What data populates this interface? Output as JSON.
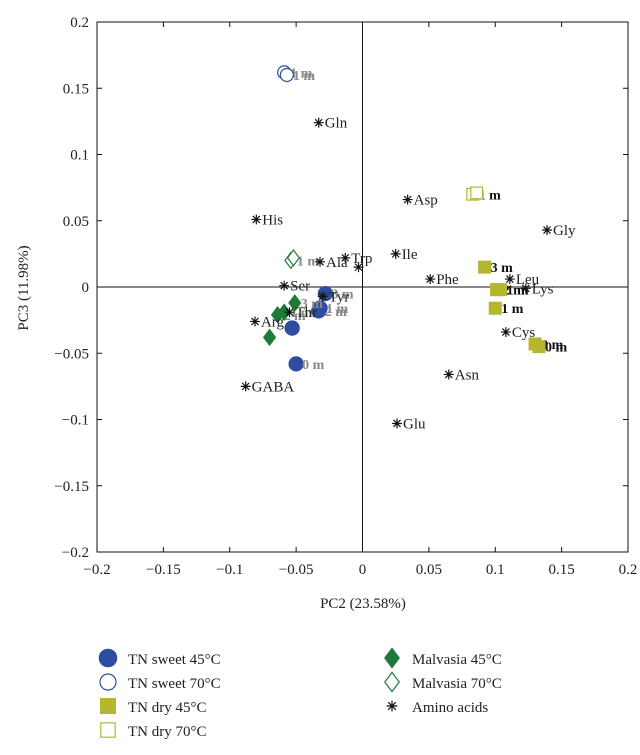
{
  "chart_data": {
    "type": "scatter",
    "xlabel": "PC2 (23.58%)",
    "ylabel": "PC3 (11.98%)",
    "xlim": [
      -0.2,
      0.2
    ],
    "ylim": [
      -0.2,
      0.2
    ],
    "x_ticks": [
      -0.2,
      -0.15,
      -0.1,
      -0.05,
      0,
      0.05,
      0.1,
      0.15,
      0.2
    ],
    "y_ticks": [
      -0.2,
      -0.15,
      -0.1,
      -0.05,
      0,
      0.05,
      0.1,
      0.15,
      0.2
    ],
    "x_tick_labels": [
      "−0.2",
      "−0.15",
      "−0.1",
      "−0.05",
      "0",
      "0.05",
      "0.1",
      "0.15",
      "0.2"
    ],
    "y_tick_labels": [
      "−0.2",
      "−0.15",
      "−0.1",
      "−0.05",
      "0",
      "0.05",
      "0.1",
      "0.15",
      "0.2"
    ],
    "grid": false,
    "zero_lines": true,
    "legend_position": "below",
    "colors": {
      "blue": "#2e4da0",
      "olive": "#b5b52e",
      "green": "#1f7a3a",
      "black": "#111111",
      "label_grey": "#888888",
      "label_dark": "#222222"
    },
    "series": [
      {
        "name": "TN sweet 45°C",
        "marker": "circle-filled",
        "color": "#2e4da0",
        "points": [
          {
            "x": -0.053,
            "y": -0.031,
            "label": ""
          },
          {
            "x": -0.05,
            "y": -0.058,
            "label": "0 m"
          },
          {
            "x": -0.033,
            "y": -0.018,
            "label": "2 m"
          },
          {
            "x": -0.032,
            "y": -0.016,
            "label": "1 m"
          },
          {
            "x": -0.028,
            "y": -0.005,
            "label": "3 m"
          }
        ]
      },
      {
        "name": "TN sweet 70°C",
        "marker": "circle-open",
        "color": "#2e4da0",
        "points": [
          {
            "x": -0.059,
            "y": 0.162,
            "label": "1 m"
          },
          {
            "x": -0.057,
            "y": 0.16,
            "label": "1 m"
          }
        ]
      },
      {
        "name": "TN dry 45°C",
        "marker": "square-filled",
        "color": "#b5b52e",
        "points": [
          {
            "x": 0.092,
            "y": 0.015,
            "label": "3 m"
          },
          {
            "x": 0.1,
            "y": -0.016,
            "label": "1 m"
          },
          {
            "x": 0.101,
            "y": -0.002,
            "label": "2 m"
          },
          {
            "x": 0.104,
            "y": -0.002,
            "label": "1 m"
          },
          {
            "x": 0.13,
            "y": -0.043,
            "label": "0 m"
          },
          {
            "x": 0.133,
            "y": -0.045,
            "label": "0 m"
          }
        ]
      },
      {
        "name": "TN dry 70°C",
        "marker": "square-open",
        "color": "#b5b52e",
        "points": [
          {
            "x": 0.083,
            "y": 0.07,
            "label": "1 m"
          },
          {
            "x": 0.086,
            "y": 0.071,
            "label": ""
          }
        ]
      },
      {
        "name": "Malvasia 45°C",
        "marker": "diamond-filled",
        "color": "#1f7a3a",
        "points": [
          {
            "x": -0.07,
            "y": -0.038,
            "label": ""
          },
          {
            "x": -0.064,
            "y": -0.021,
            "label": "2 m"
          },
          {
            "x": -0.059,
            "y": -0.019,
            "label": "1 m"
          },
          {
            "x": -0.051,
            "y": -0.012,
            "label": "3 m"
          }
        ]
      },
      {
        "name": "Malvasia 70°C",
        "marker": "diamond-open",
        "color": "#1f7a3a",
        "points": [
          {
            "x": -0.054,
            "y": 0.02,
            "label": "1 m"
          },
          {
            "x": -0.052,
            "y": 0.022,
            "label": ""
          }
        ]
      },
      {
        "name": "Amino acids",
        "marker": "asterisk",
        "color": "#111111",
        "points": [
          {
            "x": -0.033,
            "y": 0.124,
            "label": "Gln"
          },
          {
            "x": 0.034,
            "y": 0.066,
            "label": "Asp"
          },
          {
            "x": 0.139,
            "y": 0.043,
            "label": "Gly"
          },
          {
            "x": -0.08,
            "y": 0.051,
            "label": "His"
          },
          {
            "x": -0.013,
            "y": 0.022,
            "label": "Trp"
          },
          {
            "x": 0.025,
            "y": 0.025,
            "label": "Ile"
          },
          {
            "x": -0.032,
            "y": 0.019,
            "label": "Ala"
          },
          {
            "x": -0.003,
            "y": 0.015,
            "label": ""
          },
          {
            "x": 0.051,
            "y": 0.006,
            "label": "Phe"
          },
          {
            "x": 0.111,
            "y": 0.006,
            "label": "Leu"
          },
          {
            "x": 0.123,
            "y": -0.001,
            "label": "Lys"
          },
          {
            "x": -0.059,
            "y": 0.001,
            "label": "Ser"
          },
          {
            "x": -0.03,
            "y": -0.007,
            "label": "Tyr"
          },
          {
            "x": -0.055,
            "y": -0.019,
            "label": "Thr"
          },
          {
            "x": -0.081,
            "y": -0.026,
            "label": "Arg"
          },
          {
            "x": 0.108,
            "y": -0.034,
            "label": "Cys"
          },
          {
            "x": -0.088,
            "y": -0.075,
            "label": "GABA"
          },
          {
            "x": 0.065,
            "y": -0.066,
            "label": "Asn"
          },
          {
            "x": 0.026,
            "y": -0.103,
            "label": "Glu"
          }
        ]
      }
    ]
  }
}
